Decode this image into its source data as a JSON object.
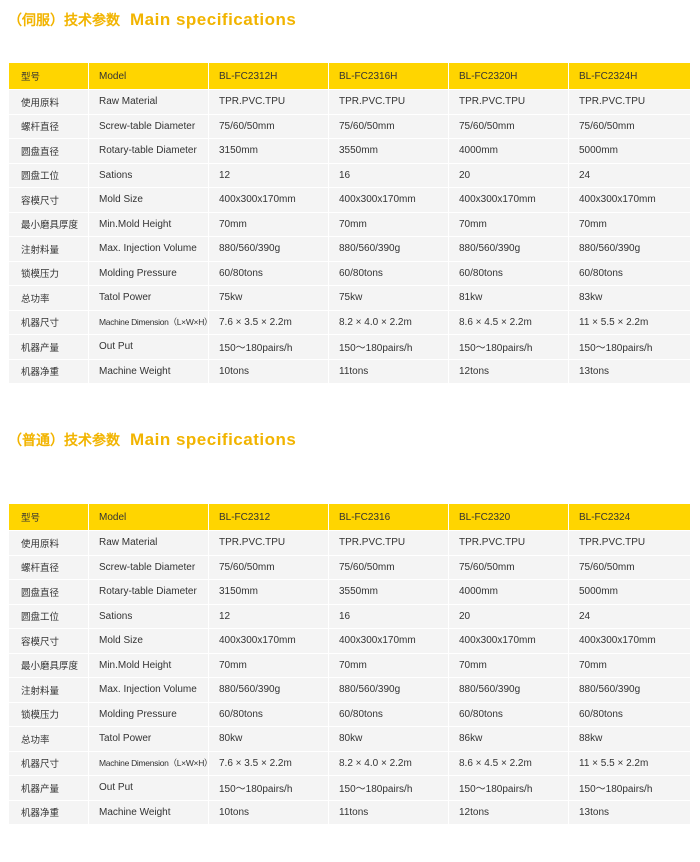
{
  "sections": [
    {
      "title_cn": "（伺服）技术参数",
      "title_en": "Main specifications",
      "header": [
        "型号",
        "Model",
        "BL-FC2312H",
        "BL-FC2316H",
        "BL-FC2320H",
        "BL-FC2324H"
      ],
      "rows": [
        [
          "使用原料",
          "Raw Material",
          "TPR.PVC.TPU",
          "TPR.PVC.TPU",
          "TPR.PVC.TPU",
          "TPR.PVC.TPU"
        ],
        [
          "螺杆直径",
          "Screw-table Diameter",
          "75/60/50mm",
          "75/60/50mm",
          "75/60/50mm",
          "75/60/50mm"
        ],
        [
          "圆盘直径",
          "Rotary-table Diameter",
          "3150mm",
          "3550mm",
          "4000mm",
          "5000mm"
        ],
        [
          "圆盘工位",
          "Sations",
          "12",
          "16",
          "20",
          "24"
        ],
        [
          "容模尺寸",
          "Mold Size",
          "400x300x170mm",
          "400x300x170mm",
          "400x300x170mm",
          "400x300x170mm"
        ],
        [
          "最小磨具厚度",
          "Min.Mold Height",
          "70mm",
          "70mm",
          "70mm",
          "70mm"
        ],
        [
          "注射料量",
          "Max. Injection Volume",
          "880/560/390g",
          "880/560/390g",
          "880/560/390g",
          "880/560/390g"
        ],
        [
          "锁模压力",
          "Molding Pressure",
          "60/80tons",
          "60/80tons",
          "60/80tons",
          "60/80tons"
        ],
        [
          "总功率",
          "Tatol Power",
          "75kw",
          "75kw",
          "81kw",
          "83kw"
        ],
        [
          "机器尺寸",
          "Machine Dimension（L×W×H）",
          "7.6 × 3.5 × 2.2m",
          "8.2 × 4.0 × 2.2m",
          "8.6 × 4.5 × 2.2m",
          "11 × 5.5 × 2.2m"
        ],
        [
          "机器产量",
          "Out Put",
          "150〜180pairs/h",
          "150〜180pairs/h",
          "150〜180pairs/h",
          "150〜180pairs/h"
        ],
        [
          "机器净重",
          "Machine Weight",
          "10tons",
          "11tons",
          "12tons",
          "13tons"
        ]
      ]
    },
    {
      "title_cn": "（普通）技术参数",
      "title_en": "Main specifications",
      "header": [
        "型号",
        "Model",
        "BL-FC2312",
        "BL-FC2316",
        "BL-FC2320",
        "BL-FC2324"
      ],
      "rows": [
        [
          "使用原料",
          "Raw Material",
          "TPR.PVC.TPU",
          "TPR.PVC.TPU",
          "TPR.PVC.TPU",
          "TPR.PVC.TPU"
        ],
        [
          "螺杆直径",
          "Screw-table Diameter",
          "75/60/50mm",
          "75/60/50mm",
          "75/60/50mm",
          "75/60/50mm"
        ],
        [
          "圆盘直径",
          "Rotary-table Diameter",
          "3150mm",
          "3550mm",
          "4000mm",
          "5000mm"
        ],
        [
          "圆盘工位",
          "Sations",
          "12",
          "16",
          "20",
          "24"
        ],
        [
          "容模尺寸",
          "Mold Size",
          "400x300x170mm",
          "400x300x170mm",
          "400x300x170mm",
          "400x300x170mm"
        ],
        [
          "最小磨具厚度",
          "Min.Mold Height",
          "70mm",
          "70mm",
          "70mm",
          "70mm"
        ],
        [
          "注射料量",
          "Max. Injection Volume",
          "880/560/390g",
          "880/560/390g",
          "880/560/390g",
          "880/560/390g"
        ],
        [
          "锁模压力",
          "Molding Pressure",
          "60/80tons",
          "60/80tons",
          "60/80tons",
          "60/80tons"
        ],
        [
          "总功率",
          "Tatol Power",
          "80kw",
          "80kw",
          "86kw",
          "88kw"
        ],
        [
          "机器尺寸",
          "Machine Dimension（L×W×H）",
          "7.6 × 3.5 × 2.2m",
          "8.2 × 4.0 × 2.2m",
          "8.6 × 4.5 × 2.2m",
          "11 × 5.5 × 2.2m"
        ],
        [
          "机器产量",
          "Out Put",
          "150〜180pairs/h",
          "150〜180pairs/h",
          "150〜180pairs/h",
          "150〜180pairs/h"
        ],
        [
          "机器净重",
          "Machine Weight",
          "10tons",
          "11tons",
          "12tons",
          "13tons"
        ]
      ]
    }
  ]
}
